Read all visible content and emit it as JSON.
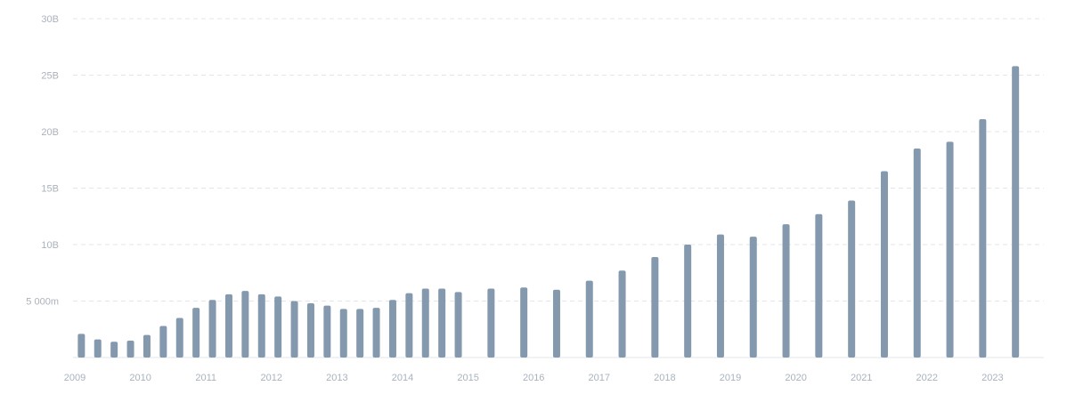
{
  "chart_data": {
    "type": "bar",
    "title": "",
    "xlabel": "",
    "ylabel": "",
    "ylim": [
      0,
      30000000000
    ],
    "grid": true,
    "bar_color": "#8499ad",
    "y_ticks": [
      {
        "value": 5000000000,
        "label": "5 000m"
      },
      {
        "value": 10000000000,
        "label": "10B"
      },
      {
        "value": 15000000000,
        "label": "15B"
      },
      {
        "value": 20000000000,
        "label": "20B"
      },
      {
        "value": 25000000000,
        "label": "25B"
      },
      {
        "value": 30000000000,
        "label": "30B"
      }
    ],
    "x_ticks": [
      "2009",
      "2010",
      "2011",
      "2012",
      "2013",
      "2014",
      "2015",
      "2016",
      "2017",
      "2018",
      "2019",
      "2020",
      "2021",
      "2022",
      "2023"
    ],
    "x_range": [
      2009,
      2023.75
    ],
    "series": [
      {
        "x": [
          2009.1,
          2009.35,
          2009.6,
          2009.85,
          2010.1,
          2010.35,
          2010.6,
          2010.85,
          2011.1,
          2011.35,
          2011.6,
          2011.85,
          2012.1,
          2012.35,
          2012.6,
          2012.85,
          2013.1,
          2013.35,
          2013.6,
          2013.85,
          2014.1,
          2014.35,
          2014.6,
          2014.85,
          2015.35,
          2015.85,
          2016.35,
          2016.85,
          2017.35,
          2017.85,
          2018.35,
          2018.85,
          2019.35,
          2019.85,
          2020.35,
          2020.85,
          2021.35,
          2021.85,
          2022.35,
          2022.85,
          2023.35
        ],
        "values": [
          2100000000,
          1600000000,
          1400000000,
          1500000000,
          2000000000,
          2800000000,
          3500000000,
          4400000000,
          5100000000,
          5600000000,
          5900000000,
          5600000000,
          5400000000,
          5000000000,
          4800000000,
          4600000000,
          4300000000,
          4300000000,
          4400000000,
          5100000000,
          5700000000,
          6100000000,
          6100000000,
          5800000000,
          6100000000,
          6200000000,
          6000000000,
          6800000000,
          7700000000,
          8900000000,
          10000000000,
          10900000000,
          10700000000,
          11800000000,
          12700000000,
          13900000000,
          16500000000,
          18500000000,
          19100000000,
          21100000000,
          25800000000
        ]
      }
    ]
  }
}
